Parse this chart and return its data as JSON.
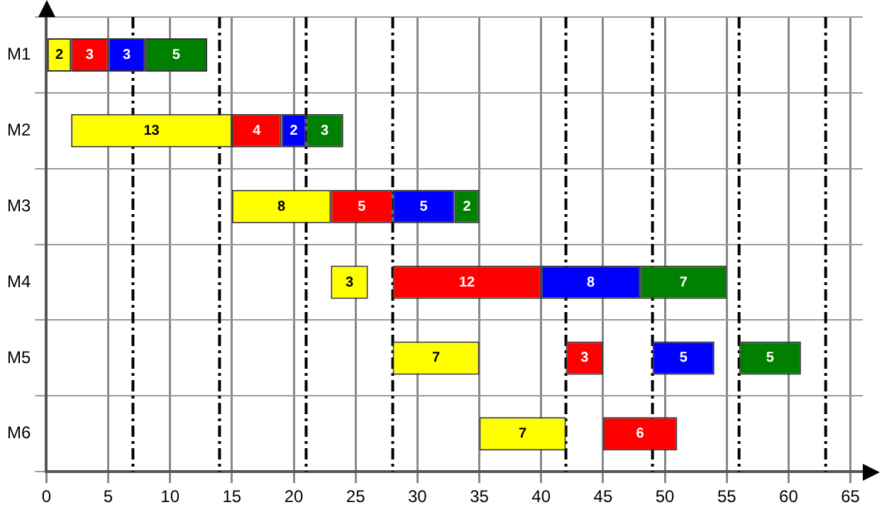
{
  "chart_data": {
    "type": "bar",
    "orientation": "horizontal",
    "categories": [
      "M1",
      "M2",
      "M3",
      "M4",
      "M5",
      "M6"
    ],
    "series": [
      {
        "color": "#ffff00",
        "values": [
          2,
          13,
          8,
          3,
          7,
          7
        ],
        "base": [
          0,
          2,
          15,
          23,
          28,
          35
        ]
      },
      {
        "color": "#ff0000",
        "values": [
          3,
          4,
          5,
          12,
          3,
          6
        ],
        "base": [
          2,
          15,
          23,
          28,
          42,
          45
        ]
      },
      {
        "color": "#0000ff",
        "values": [
          3,
          2,
          5,
          8,
          5,
          null
        ],
        "base": [
          5,
          19,
          28,
          40,
          49,
          null
        ]
      },
      {
        "color": "#008000",
        "values": [
          5,
          3,
          2,
          7,
          5,
          null
        ],
        "base": [
          8,
          21,
          33,
          48,
          56,
          null
        ]
      }
    ],
    "xlim": [
      0,
      66
    ],
    "xticks": [
      0,
      5,
      10,
      15,
      20,
      25,
      30,
      35,
      40,
      45,
      50,
      55,
      60,
      65
    ],
    "ref_lines": [
      {
        "axis": "x",
        "value": 7,
        "color": "#000000",
        "line_style": "dashed"
      },
      {
        "axis": "x",
        "value": 14,
        "color": "#000000",
        "line_style": "dashed"
      },
      {
        "axis": "x",
        "value": 21,
        "color": "#000000",
        "line_style": "dashed"
      },
      {
        "axis": "x",
        "value": 28,
        "color": "#000000",
        "line_style": "dashed"
      },
      {
        "axis": "x",
        "value": 42,
        "color": "#000000",
        "line_style": "dashed"
      },
      {
        "axis": "x",
        "value": 49,
        "color": "#000000",
        "line_style": "dashed"
      },
      {
        "axis": "x",
        "value": 56,
        "color": "#000000",
        "line_style": "dashed"
      },
      {
        "axis": "x",
        "value": 63,
        "color": "#000000",
        "line_style": "dashed"
      }
    ],
    "grid": true,
    "data_labels": true,
    "legend": false
  }
}
